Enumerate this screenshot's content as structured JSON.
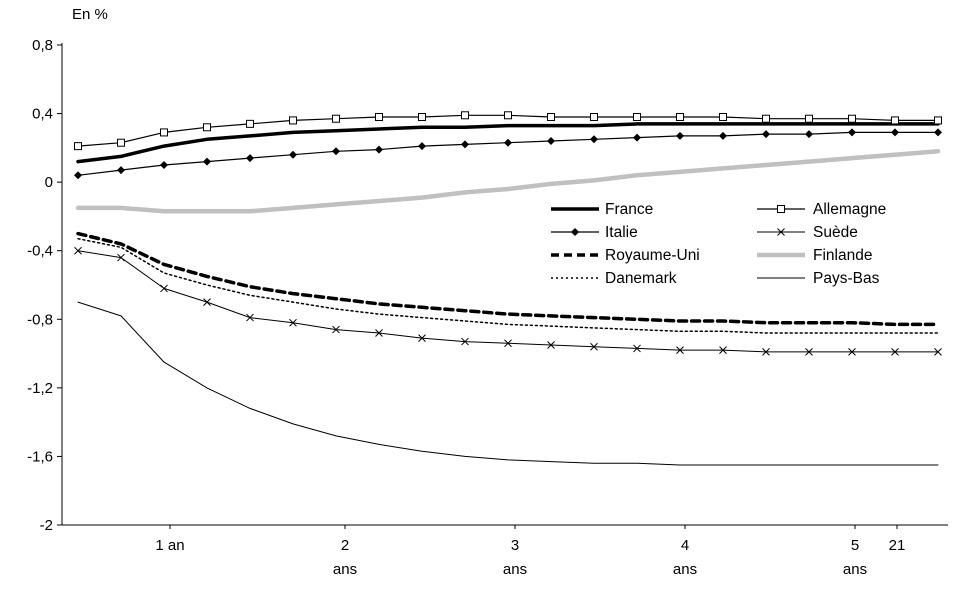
{
  "chart_data": {
    "type": "line",
    "x_quarters": [
      1,
      2,
      3,
      4,
      5,
      6,
      7,
      8,
      9,
      10,
      11,
      12,
      13,
      14,
      15,
      16,
      17,
      18,
      19,
      20,
      21
    ],
    "x_axis": {
      "ticks": [
        {
          "label": "1 an",
          "sublabel": ""
        },
        {
          "label": "2",
          "sublabel": "ans"
        },
        {
          "label": "3",
          "sublabel": "ans"
        },
        {
          "label": "4",
          "sublabel": "ans"
        },
        {
          "label": "5",
          "sublabel": "ans"
        },
        {
          "label": "21",
          "sublabel": ""
        }
      ]
    },
    "y_axis": {
      "label": "En %",
      "min": -2,
      "max": 0.8,
      "ticks": [
        {
          "value": 0.8,
          "label": "0,8"
        },
        {
          "value": 0.4,
          "label": "0,4"
        },
        {
          "value": 0,
          "label": "0"
        },
        {
          "value": -0.4,
          "label": "-0,4"
        },
        {
          "value": -0.8,
          "label": "-0,8"
        },
        {
          "value": -1.2,
          "label": "-1,2"
        },
        {
          "value": -1.6,
          "label": "-1,6"
        },
        {
          "value": -2,
          "label": "-2"
        }
      ]
    },
    "series": [
      {
        "name": "Finlande",
        "color": "#c0c0c0",
        "width": 4.5,
        "dash": "",
        "marker": "none",
        "values": [
          -0.15,
          -0.15,
          -0.17,
          -0.17,
          -0.17,
          -0.15,
          -0.13,
          -0.11,
          -0.09,
          -0.06,
          -0.04,
          -0.01,
          0.01,
          0.04,
          0.06,
          0.08,
          0.1,
          0.12,
          0.14,
          0.16,
          0.18
        ]
      },
      {
        "name": "France",
        "color": "#000000",
        "width": 3.5,
        "dash": "",
        "marker": "none",
        "values": [
          0.12,
          0.15,
          0.21,
          0.25,
          0.27,
          0.29,
          0.3,
          0.31,
          0.32,
          0.32,
          0.33,
          0.33,
          0.33,
          0.34,
          0.34,
          0.34,
          0.34,
          0.34,
          0.34,
          0.34,
          0.34
        ]
      },
      {
        "name": "Allemagne",
        "color": "#000000",
        "width": 1.2,
        "dash": "",
        "marker": "square-open",
        "values": [
          0.21,
          0.23,
          0.29,
          0.32,
          0.34,
          0.36,
          0.37,
          0.38,
          0.38,
          0.39,
          0.39,
          0.38,
          0.38,
          0.38,
          0.38,
          0.38,
          0.37,
          0.37,
          0.37,
          0.36,
          0.36
        ]
      },
      {
        "name": "Italie",
        "color": "#000000",
        "width": 1.2,
        "dash": "",
        "marker": "diamond",
        "values": [
          0.04,
          0.07,
          0.1,
          0.12,
          0.14,
          0.16,
          0.18,
          0.19,
          0.21,
          0.22,
          0.23,
          0.24,
          0.25,
          0.26,
          0.27,
          0.27,
          0.28,
          0.28,
          0.29,
          0.29,
          0.29
        ]
      },
      {
        "name": "Suède",
        "color": "#000000",
        "width": 1,
        "dash": "",
        "marker": "x",
        "values": [
          -0.4,
          -0.44,
          -0.62,
          -0.7,
          -0.79,
          -0.82,
          -0.86,
          -0.88,
          -0.91,
          -0.93,
          -0.94,
          -0.95,
          -0.96,
          -0.97,
          -0.98,
          -0.98,
          -0.99,
          -0.99,
          -0.99,
          -0.99,
          -0.99
        ]
      },
      {
        "name": "Royaume-Uni",
        "color": "#000000",
        "width": 3.5,
        "dash": "8,5",
        "marker": "none",
        "values": [
          -0.3,
          -0.36,
          -0.48,
          -0.55,
          -0.61,
          -0.65,
          -0.68,
          -0.71,
          -0.73,
          -0.75,
          -0.77,
          -0.78,
          -0.79,
          -0.8,
          -0.81,
          -0.81,
          -0.82,
          -0.82,
          -0.82,
          -0.83,
          -0.83
        ]
      },
      {
        "name": "Danemark",
        "color": "#000000",
        "width": 1.5,
        "dash": "2,3",
        "marker": "none",
        "values": [
          -0.33,
          -0.38,
          -0.53,
          -0.6,
          -0.66,
          -0.7,
          -0.74,
          -0.77,
          -0.79,
          -0.81,
          -0.83,
          -0.84,
          -0.85,
          -0.86,
          -0.87,
          -0.87,
          -0.88,
          -0.88,
          -0.88,
          -0.88,
          -0.88
        ]
      },
      {
        "name": "Pays-Bas",
        "color": "#000000",
        "width": 1,
        "dash": "",
        "marker": "none",
        "values": [
          -0.7,
          -0.78,
          -1.05,
          -1.2,
          -1.32,
          -1.41,
          -1.48,
          -1.53,
          -1.57,
          -1.6,
          -1.62,
          -1.63,
          -1.64,
          -1.64,
          -1.65,
          -1.65,
          -1.65,
          -1.65,
          -1.65,
          -1.65,
          -1.65
        ]
      }
    ],
    "legend": {
      "position": "center-right",
      "columns": [
        [
          "France",
          "Italie",
          "Royaume-Uni",
          "Danemark"
        ],
        [
          "Allemagne",
          "Suède",
          "Finlande",
          "Pays-Bas"
        ]
      ]
    }
  }
}
